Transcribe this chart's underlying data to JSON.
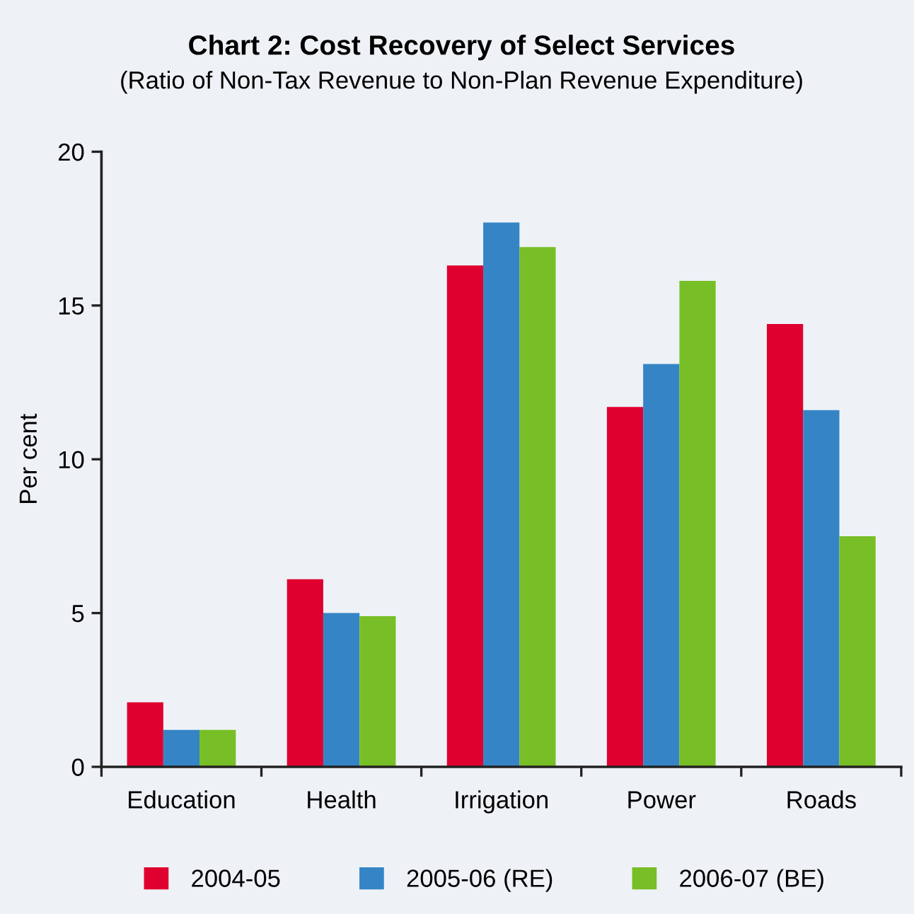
{
  "chart_data": {
    "type": "bar",
    "title": "Chart 2: Cost Recovery of Select Services",
    "subtitle": "(Ratio of Non-Tax Revenue to Non-Plan Revenue Expenditure)",
    "ylabel": "Per cent",
    "categories": [
      "Education",
      "Health",
      "Irrigation",
      "Power",
      "Roads"
    ],
    "series": [
      {
        "name": "2004-05",
        "color": "#e00030",
        "values": [
          2.1,
          6.1,
          16.3,
          11.7,
          14.4
        ]
      },
      {
        "name": "2005-06 (RE)",
        "color": "#3585c6",
        "values": [
          1.2,
          5.0,
          17.7,
          13.1,
          11.6
        ]
      },
      {
        "name": "2006-07 (BE)",
        "color": "#78be26",
        "values": [
          1.2,
          4.9,
          16.9,
          15.8,
          7.5
        ]
      }
    ],
    "ylim": [
      0,
      20
    ],
    "yticks": [
      0,
      5,
      10,
      15,
      20
    ],
    "grid": false,
    "legend": "bottom"
  }
}
